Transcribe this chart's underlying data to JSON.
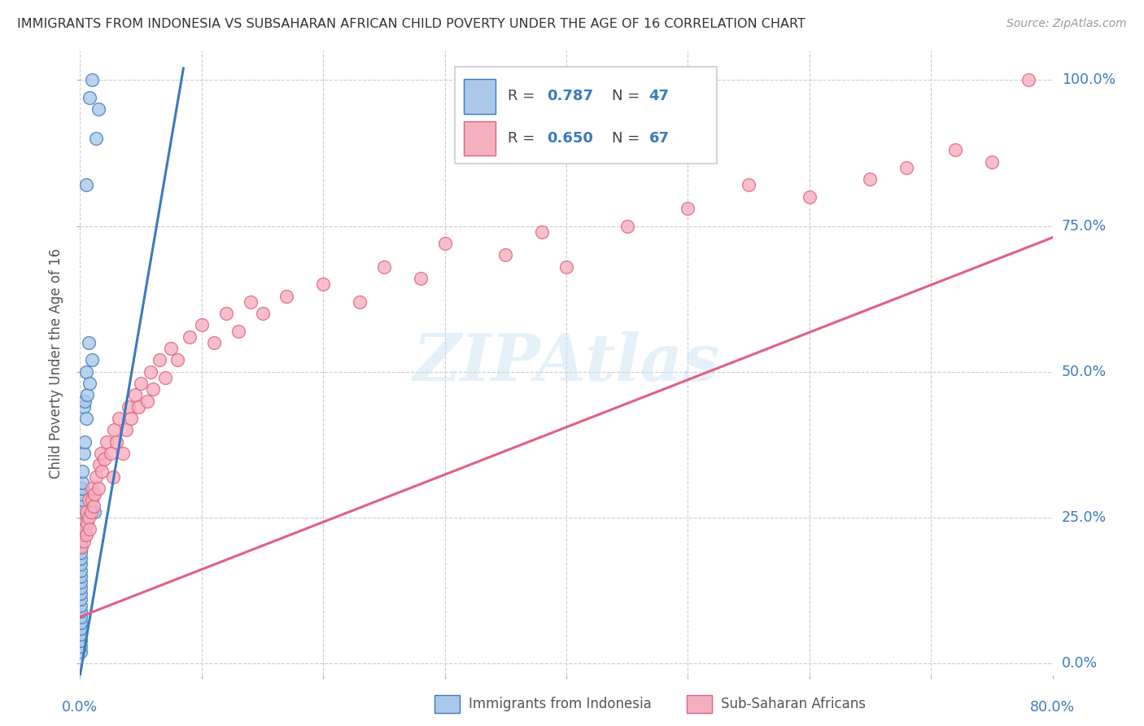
{
  "title": "IMMIGRANTS FROM INDONESIA VS SUBSAHARAN AFRICAN CHILD POVERTY UNDER THE AGE OF 16 CORRELATION CHART",
  "source": "Source: ZipAtlas.com",
  "ylabel": "Child Poverty Under the Age of 16",
  "color_indonesia": "#aac8e8",
  "color_subsaharan": "#f5b0c0",
  "color_line_indonesia": "#3a7abf",
  "color_line_subsaharan": "#e06080",
  "legend_label1": "Immigrants from Indonesia",
  "legend_label2": "Sub-Saharan Africans",
  "indo_x": [
    0.0005,
    0.0005,
    0.0005,
    0.0005,
    0.0005,
    0.0005,
    0.0005,
    0.0005,
    0.0005,
    0.0005,
    0.0005,
    0.0005,
    0.0005,
    0.0005,
    0.0005,
    0.0005,
    0.0005,
    0.0005,
    0.0005,
    0.0005,
    0.001,
    0.001,
    0.001,
    0.001,
    0.001,
    0.001,
    0.0015,
    0.0015,
    0.002,
    0.002,
    0.002,
    0.003,
    0.003,
    0.004,
    0.004,
    0.005,
    0.005,
    0.006,
    0.007,
    0.008,
    0.01,
    0.012,
    0.005,
    0.008,
    0.01,
    0.013,
    0.015
  ],
  "indo_y": [
    0.02,
    0.03,
    0.04,
    0.05,
    0.06,
    0.07,
    0.08,
    0.09,
    0.1,
    0.11,
    0.12,
    0.13,
    0.14,
    0.15,
    0.16,
    0.17,
    0.18,
    0.19,
    0.2,
    0.21,
    0.22,
    0.23,
    0.24,
    0.25,
    0.26,
    0.27,
    0.28,
    0.29,
    0.3,
    0.31,
    0.33,
    0.36,
    0.44,
    0.38,
    0.45,
    0.5,
    0.42,
    0.46,
    0.55,
    0.48,
    0.52,
    0.26,
    0.82,
    0.97,
    1.0,
    0.9,
    0.95
  ],
  "sub_x": [
    0.001,
    0.002,
    0.003,
    0.003,
    0.004,
    0.005,
    0.005,
    0.006,
    0.007,
    0.007,
    0.008,
    0.009,
    0.01,
    0.01,
    0.011,
    0.012,
    0.013,
    0.015,
    0.016,
    0.017,
    0.018,
    0.02,
    0.022,
    0.025,
    0.027,
    0.028,
    0.03,
    0.032,
    0.035,
    0.038,
    0.04,
    0.042,
    0.045,
    0.048,
    0.05,
    0.055,
    0.058,
    0.06,
    0.065,
    0.07,
    0.075,
    0.08,
    0.09,
    0.1,
    0.11,
    0.12,
    0.13,
    0.14,
    0.15,
    0.17,
    0.2,
    0.23,
    0.25,
    0.28,
    0.3,
    0.35,
    0.38,
    0.4,
    0.45,
    0.5,
    0.55,
    0.6,
    0.65,
    0.68,
    0.72,
    0.75,
    0.78
  ],
  "sub_y": [
    0.2,
    0.22,
    0.21,
    0.24,
    0.23,
    0.22,
    0.26,
    0.24,
    0.25,
    0.28,
    0.23,
    0.26,
    0.28,
    0.3,
    0.27,
    0.29,
    0.32,
    0.3,
    0.34,
    0.36,
    0.33,
    0.35,
    0.38,
    0.36,
    0.32,
    0.4,
    0.38,
    0.42,
    0.36,
    0.4,
    0.44,
    0.42,
    0.46,
    0.44,
    0.48,
    0.45,
    0.5,
    0.47,
    0.52,
    0.49,
    0.54,
    0.52,
    0.56,
    0.58,
    0.55,
    0.6,
    0.57,
    0.62,
    0.6,
    0.63,
    0.65,
    0.62,
    0.68,
    0.66,
    0.72,
    0.7,
    0.74,
    0.68,
    0.75,
    0.78,
    0.82,
    0.8,
    0.83,
    0.85,
    0.88,
    0.86,
    1.0
  ],
  "indo_line_x": [
    0.0,
    0.085
  ],
  "indo_line_y": [
    -0.02,
    1.02
  ],
  "sub_line_x": [
    0.0,
    0.8
  ],
  "sub_line_y": [
    0.08,
    0.73
  ],
  "xlim": [
    0,
    0.8
  ],
  "ylim": [
    -0.02,
    1.05
  ],
  "ytick_vals": [
    0.0,
    0.25,
    0.5,
    0.75,
    1.0
  ],
  "ytick_labels": [
    "0.0%",
    "25.0%",
    "50.0%",
    "75.0%",
    "100.0%"
  ],
  "xtick_vals": [
    0.0,
    0.1,
    0.2,
    0.3,
    0.4,
    0.5,
    0.6,
    0.7,
    0.8
  ]
}
